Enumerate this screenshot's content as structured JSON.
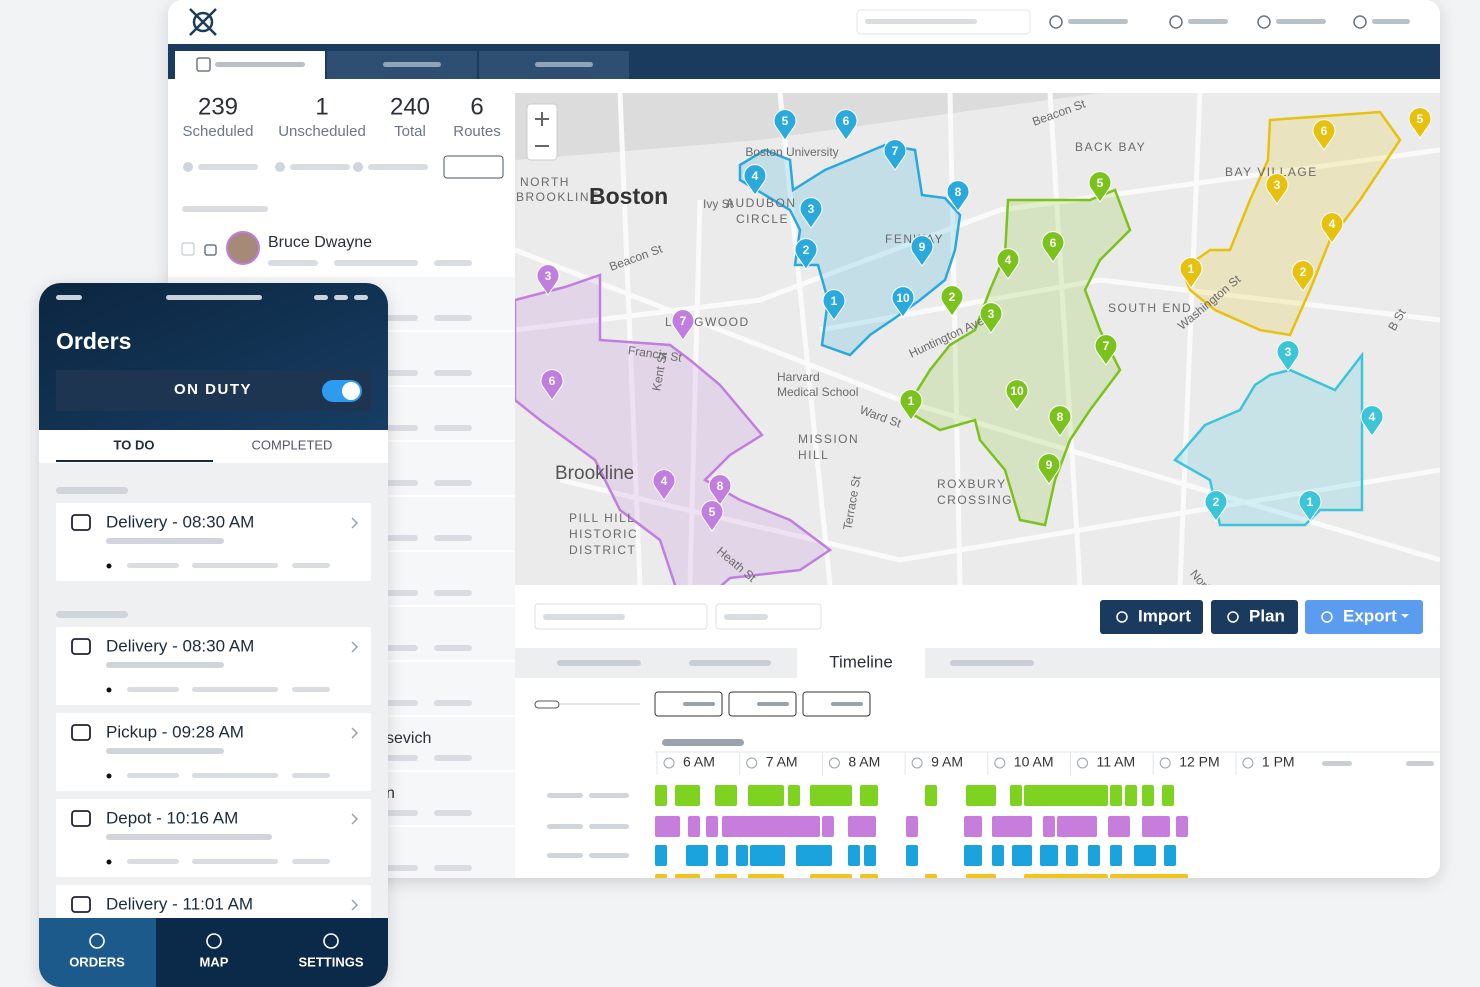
{
  "stats": [
    {
      "value": 239,
      "label": "Scheduled"
    },
    {
      "value": 1,
      "label": "Unscheduled"
    },
    {
      "value": 240,
      "label": "Total"
    },
    {
      "value": 6,
      "label": "Routes"
    }
  ],
  "drivers": [
    "Bruce Dwayne",
    "sevich",
    "n"
  ],
  "map": {
    "city": "Boston",
    "labels": [
      "Boston University",
      "NORTH",
      "BROOKLINE",
      "AUDUBON",
      "CIRCLE",
      "FENWAY",
      "BACK BAY",
      "Beacon St",
      "BAY VILLAGE",
      "SOUTH END",
      "LONGWOOD",
      "Harvard",
      "Medical School",
      "MISSION",
      "HILL",
      "Brookline",
      "PILL HILL",
      "HISTORIC",
      "DISTRICT",
      "ROXBURY",
      "CROSSING",
      "Francis St",
      "Kent St",
      "Ward St",
      "Huntington Ave",
      "Washington St",
      "Heath St",
      "Terrace St",
      "Norfolk",
      "B St",
      "Beacon St",
      "Ivy St"
    ],
    "routes": [
      {
        "color": "#29a9dc",
        "stops": [
          5,
          6,
          7,
          4,
          8,
          3,
          2,
          9,
          10,
          1
        ]
      },
      {
        "color": "#c07ede",
        "stops": [
          3,
          7,
          6,
          4,
          8,
          5
        ]
      },
      {
        "color": "#7cc21c",
        "stops": [
          5,
          6,
          4,
          2,
          3,
          7,
          10,
          1,
          8,
          9
        ]
      },
      {
        "color": "#e6c20e",
        "stops": [
          5,
          6,
          3,
          4,
          1,
          2
        ]
      },
      {
        "color": "#3cc4d8",
        "stops": [
          3,
          4,
          2,
          1
        ]
      }
    ]
  },
  "actions": [
    "Import",
    "Plan",
    "Export"
  ],
  "active_tab": "Timeline",
  "timeline": {
    "hours": [
      "6 AM",
      "7 AM",
      "8 AM",
      "9 AM",
      "10 AM",
      "11 AM",
      "12 PM",
      "1 PM"
    ]
  },
  "phone": {
    "title": "Orders",
    "status": "ON DUTY",
    "tabs": [
      "TO DO",
      "COMPLETED"
    ],
    "orders": [
      "Delivery - 08:30 AM",
      "Delivery - 08:30 AM",
      "Pickup - 09:28 AM",
      "Depot - 10:16 AM",
      "Delivery - 11:01 AM"
    ],
    "nav": [
      "ORDERS",
      "MAP",
      "SETTINGS"
    ]
  }
}
